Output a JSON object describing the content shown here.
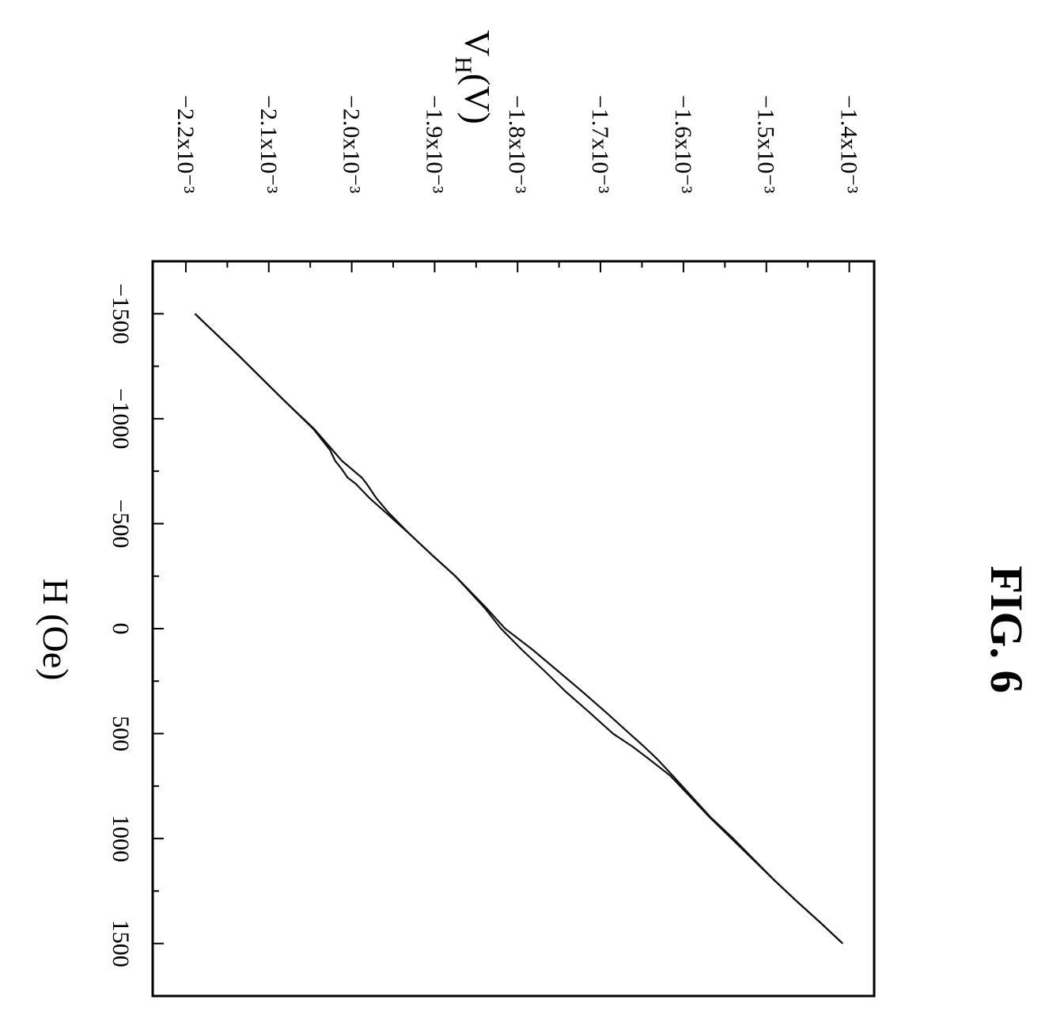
{
  "figure": {
    "label": "FIG. 6"
  },
  "chart_data": {
    "type": "line",
    "title": "",
    "xlabel": "H (Oe)",
    "ylabel_main": "V",
    "ylabel_subscript": "H",
    "ylabel_unit": "(V)",
    "x_ticks": [
      {
        "value": -1500,
        "label": "−1500"
      },
      {
        "value": -1000,
        "label": "−1000"
      },
      {
        "value": -500,
        "label": "−500"
      },
      {
        "value": 0,
        "label": "0"
      },
      {
        "value": 500,
        "label": "500"
      },
      {
        "value": 1000,
        "label": "1000"
      },
      {
        "value": 1500,
        "label": "1500"
      }
    ],
    "y_ticks": [
      {
        "value": -0.0022,
        "label": "−2.2x10⁻³"
      },
      {
        "value": -0.0021,
        "label": "−2.1x10⁻³"
      },
      {
        "value": -0.002,
        "label": "−2.0x10⁻³"
      },
      {
        "value": -0.0019,
        "label": "−1.9x10⁻³"
      },
      {
        "value": -0.0018,
        "label": "−1.8x10⁻³"
      },
      {
        "value": -0.0017,
        "label": "−1.7x10⁻³"
      },
      {
        "value": -0.0016,
        "label": "−1.6x10⁻³"
      },
      {
        "value": -0.0015,
        "label": "−1.5x10⁻³"
      },
      {
        "value": -0.0014,
        "label": "−1.4x10⁻³"
      }
    ],
    "xlim": [
      -1750,
      1750
    ],
    "ylim": [
      -0.00224,
      -0.00137
    ],
    "grid": false,
    "legend": "none",
    "orientation": "rotated 90° clockwise",
    "series": [
      {
        "x": [
          -1500,
          -1300,
          -1100,
          -950,
          -850,
          -800,
          -760,
          -720,
          -690,
          -620,
          -550,
          -450,
          -350,
          -250,
          -100,
          0,
          100,
          200,
          300,
          400,
          500,
          560,
          620,
          700,
          800,
          900,
          1000,
          1100,
          1200,
          1300,
          1400,
          1500
        ],
        "y": [
          -0.002189,
          -0.002136,
          -0.002085,
          -0.002045,
          -0.002023,
          -0.002012,
          -0.002,
          -0.001988,
          -0.001982,
          -0.00197,
          -0.001955,
          -0.00193,
          -0.001903,
          -0.001875,
          -0.001838,
          -0.001815,
          -0.001782,
          -0.001752,
          -0.001722,
          -0.001693,
          -0.001665,
          -0.001648,
          -0.001632,
          -0.001613,
          -0.00159,
          -0.001567,
          -0.00154,
          -0.001515,
          -0.00149,
          -0.001463,
          -0.001435,
          -0.001408
        ]
      },
      {
        "x": [
          -1500,
          -1300,
          -1100,
          -950,
          -850,
          -800,
          -760,
          -720,
          -690,
          -620,
          -550,
          -450,
          -350,
          -250,
          -100,
          0,
          100,
          200,
          300,
          400,
          500,
          560,
          620,
          700,
          800,
          900,
          1000,
          1100,
          1200,
          1300,
          1400,
          1500
        ],
        "y": [
          -0.002189,
          -0.002136,
          -0.002085,
          -0.002046,
          -0.002026,
          -0.00202,
          -0.002012,
          -0.002005,
          -0.001995,
          -0.001978,
          -0.001958,
          -0.00193,
          -0.001903,
          -0.001875,
          -0.00184,
          -0.00182,
          -0.001795,
          -0.001768,
          -0.001742,
          -0.001713,
          -0.001685,
          -0.001662,
          -0.001642,
          -0.001616,
          -0.001592,
          -0.001568,
          -0.001542,
          -0.001516,
          -0.00149,
          -0.001463,
          -0.001435,
          -0.001408
        ]
      }
    ]
  }
}
